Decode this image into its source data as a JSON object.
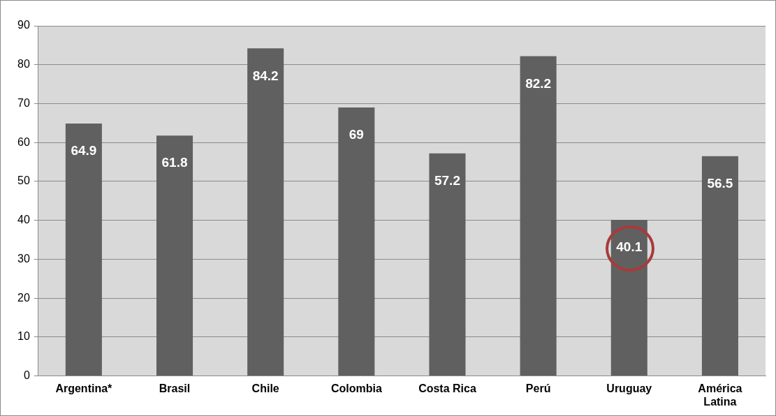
{
  "chart_data": {
    "type": "bar",
    "categories": [
      "Argentina*",
      "Brasil",
      "Chile",
      "Colombia",
      "Costa Rica",
      "Perú",
      "Uruguay",
      "América Latina"
    ],
    "values": [
      64.9,
      61.8,
      84.2,
      69,
      57.2,
      82.2,
      40.1,
      56.5
    ],
    "color": "#606060",
    "ylim": [
      0,
      90
    ],
    "yticks": [
      0,
      10,
      20,
      30,
      40,
      50,
      60,
      70,
      80,
      90
    ],
    "grid": "y",
    "data_labels": true
  }
}
